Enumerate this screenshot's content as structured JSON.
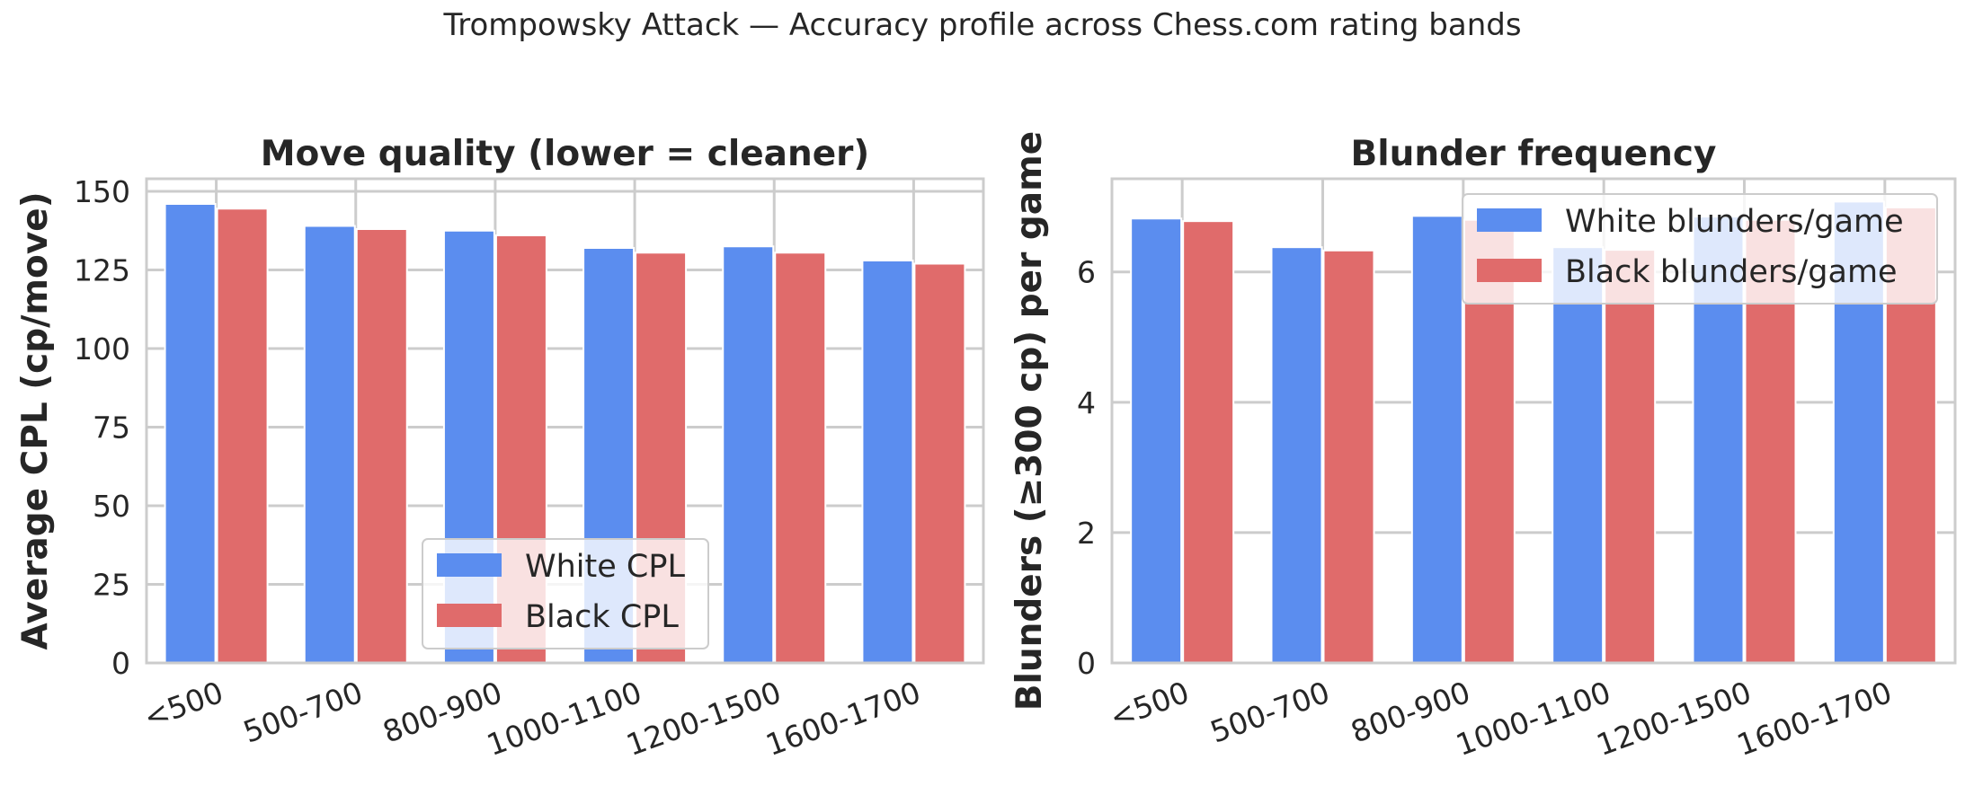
{
  "figure_title": "Trompowsky Attack — Accuracy profile across Chess.com rating bands",
  "colors": {
    "white_series": "#5b8def",
    "black_series": "#e06b6b",
    "grid": "#cccccc",
    "spine": "#cccccc"
  },
  "chart_data": [
    {
      "type": "bar",
      "title": "Move quality (lower = cleaner)",
      "xlabel": "",
      "ylabel": "Average CPL (cp/move)",
      "categories": [
        "<500",
        "500-700",
        "800-900",
        "1000-1100",
        "1200-1500",
        "1600-1700"
      ],
      "series": [
        {
          "name": "White CPL",
          "values": [
            146,
            139,
            137.5,
            132,
            132.5,
            128
          ]
        },
        {
          "name": "Black CPL",
          "values": [
            144.5,
            138,
            136,
            130.5,
            130.5,
            127
          ]
        }
      ],
      "ylim": [
        0,
        154
      ],
      "yticks": [
        0,
        25,
        50,
        75,
        100,
        125,
        150
      ],
      "grid": true,
      "legend_position": "bottom-center"
    },
    {
      "type": "bar",
      "title": "Blunder frequency",
      "xlabel": "",
      "ylabel": "Blunders (≥300 cp) per game",
      "categories": [
        "<500",
        "500-700",
        "800-900",
        "1000-1100",
        "1200-1500",
        "1600-1700"
      ],
      "series": [
        {
          "name": "White blunders/game",
          "values": [
            6.82,
            6.38,
            6.86,
            6.38,
            6.85,
            7.08
          ]
        },
        {
          "name": "Black blunders/game",
          "values": [
            6.78,
            6.33,
            6.8,
            6.34,
            6.8,
            6.99
          ]
        }
      ],
      "ylim": [
        0,
        7.43
      ],
      "yticks": [
        0,
        2,
        4,
        6
      ],
      "grid": true,
      "legend_position": "top-right"
    }
  ]
}
